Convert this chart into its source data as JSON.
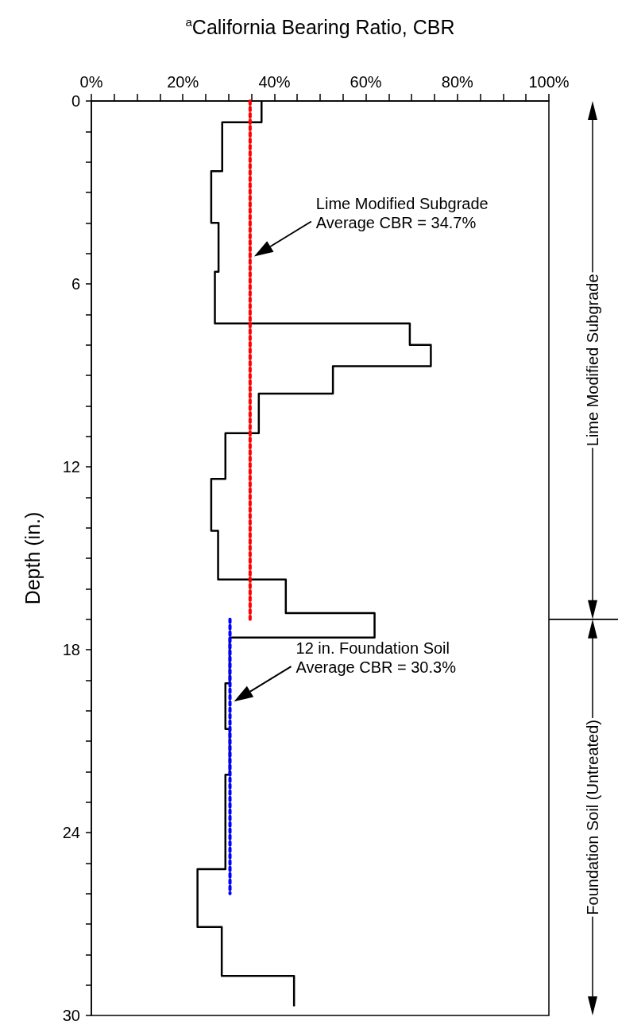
{
  "chart_data": {
    "type": "line",
    "xlabel": "$^{a}$California Bearing Ratio, CBR",
    "ylabel": "Depth (in.)",
    "xlim": [
      0,
      100
    ],
    "xticks": [
      {
        "value": 0,
        "label": "0%"
      },
      {
        "value": 5,
        "label": null
      },
      {
        "value": 10,
        "label": null
      },
      {
        "value": 15,
        "label": null
      },
      {
        "value": 20,
        "label": "20%"
      },
      {
        "value": 25,
        "label": null
      },
      {
        "value": 30,
        "label": null
      },
      {
        "value": 35,
        "label": null
      },
      {
        "value": 40,
        "label": "40%"
      },
      {
        "value": 45,
        "label": null
      },
      {
        "value": 50,
        "label": null
      },
      {
        "value": 55,
        "label": null
      },
      {
        "value": 60,
        "label": "60%"
      },
      {
        "value": 65,
        "label": null
      },
      {
        "value": 70,
        "label": null
      },
      {
        "value": 75,
        "label": null
      },
      {
        "value": 80,
        "label": "80%"
      },
      {
        "value": 85,
        "label": null
      },
      {
        "value": 90,
        "label": null
      },
      {
        "value": 95,
        "label": null
      },
      {
        "value": 100,
        "label": "100%"
      }
    ],
    "ylim": [
      30,
      0
    ],
    "yticks": [
      0,
      {
        "value": 1,
        "label": null
      },
      {
        "value": 2,
        "label": null
      },
      {
        "value": 3,
        "label": null
      },
      {
        "value": 4,
        "label": null
      },
      {
        "value": 5,
        "label": null
      },
      6,
      {
        "value": 7,
        "label": null
      },
      {
        "value": 8,
        "label": null
      },
      {
        "value": 9,
        "label": null
      },
      {
        "value": 10,
        "label": null
      },
      {
        "value": 11,
        "label": null
      },
      12,
      {
        "value": 13,
        "label": null
      },
      {
        "value": 14,
        "label": null
      },
      {
        "value": 15,
        "label": null
      },
      {
        "value": 16,
        "label": null
      },
      {
        "value": 17,
        "label": null
      },
      18,
      {
        "value": 19,
        "label": null
      },
      {
        "value": 20,
        "label": null
      },
      {
        "value": 21,
        "label": null
      },
      {
        "value": 22,
        "label": null
      },
      {
        "value": 23,
        "label": null
      },
      24,
      {
        "value": 25,
        "label": null
      },
      {
        "value": 26,
        "label": null
      },
      {
        "value": 27,
        "label": null
      },
      {
        "value": 28,
        "label": null
      },
      {
        "value": 29,
        "label": null
      },
      30
    ],
    "grid": false,
    "marker": "none",
    "series": [
      {
        "color": "#000000",
        "line_style": "solid",
        "x": [
          37.2,
          37.2,
          28.6,
          28.6,
          26.2,
          26.2,
          27.8,
          27.8,
          27.0,
          27.0,
          69.6,
          69.6,
          74.2,
          74.2,
          52.8,
          52.8,
          36.6,
          36.6,
          29.3,
          29.3,
          26.2,
          26.2,
          27.7,
          27.7,
          42.5,
          42.5,
          61.9,
          61.9,
          30.2,
          30.2,
          29.3,
          29.3,
          30.2,
          30.2,
          29.3,
          29.3,
          23.2,
          23.2,
          28.5,
          28.5,
          44.3,
          44.3
        ],
        "values": [
          0,
          0.7,
          0.7,
          2.3,
          2.3,
          4.0,
          4.0,
          5.6,
          5.6,
          7.3,
          7.3,
          8.0,
          8.0,
          8.7,
          8.7,
          9.6,
          9.6,
          10.9,
          10.9,
          12.4,
          12.4,
          14.1,
          14.1,
          15.7,
          15.7,
          16.8,
          16.8,
          17.6,
          17.6,
          19.1,
          19.1,
          20.6,
          20.6,
          22.1,
          22.1,
          25.2,
          25.2,
          27.1,
          27.1,
          28.7,
          28.7,
          29.7
        ]
      },
      {
        "color": "#ff0000",
        "line_style": "dashed",
        "x": [
          34.7,
          34.7
        ],
        "values": [
          0,
          17.0
        ]
      },
      {
        "color": "#0000ff",
        "line_style": "dashed",
        "x": [
          30.3,
          30.3
        ],
        "values": [
          17.0,
          26.0
        ]
      }
    ],
    "annotations": [
      "Lime Modified Subgrade\nAverage CBR = 34.7%",
      "12 in. Foundation Soil\nAverage CBR = 30.3%",
      "Lime Modified Subgrade",
      "Foundation Soil (Untreated)"
    ]
  }
}
